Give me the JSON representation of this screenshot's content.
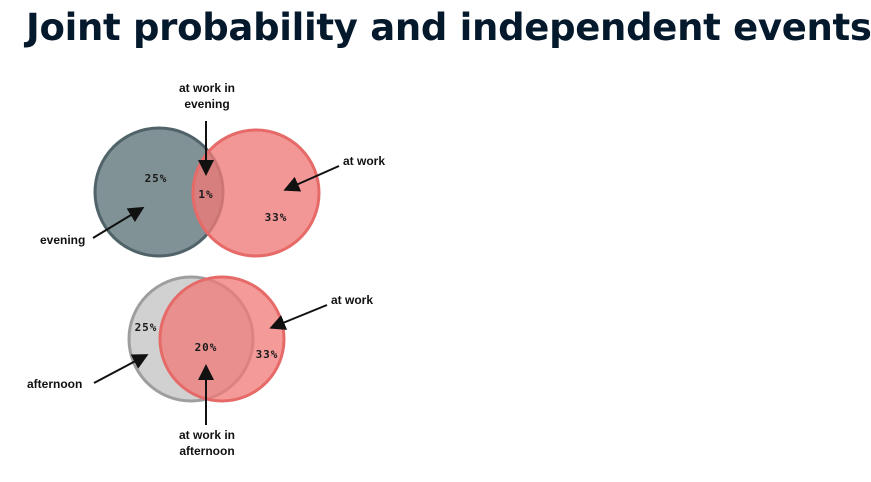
{
  "title": "Joint probability and independent events",
  "top_diagram": {
    "intersection_label": "at work in evening",
    "right_label": "at work",
    "left_label": "evening",
    "left_pct": "25%",
    "intersection_pct": "1%",
    "right_pct": "33%",
    "colors": {
      "left": "#5d7378",
      "right": "#f07a78"
    }
  },
  "bottom_diagram": {
    "right_label": "at work",
    "left_label": "afternoon",
    "intersection_label": "at work in afternoon",
    "left_pct": "25%",
    "intersection_pct": "20%",
    "right_pct": "33%",
    "colors": {
      "left": "#c4c4c4",
      "right": "#f07a78"
    }
  }
}
